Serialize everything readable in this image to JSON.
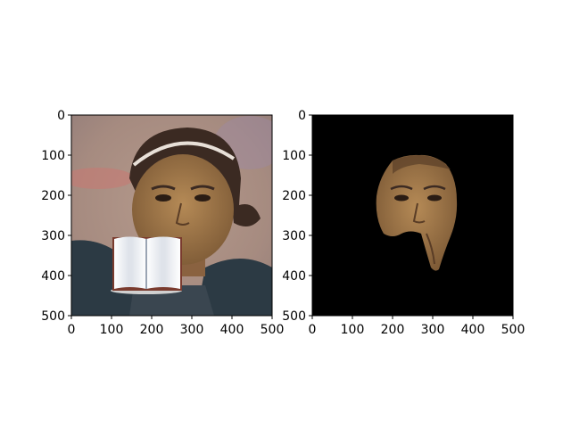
{
  "figure": {
    "panels": [
      {
        "name": "original-with-occluder",
        "x_ticks": [
          "0",
          "100",
          "200",
          "300",
          "400",
          "500"
        ],
        "y_ticks": [
          "0",
          "100",
          "200",
          "300",
          "400",
          "500"
        ],
        "content": "photo of a female soccer player's face with a white open-book occluder over the mouth region"
      },
      {
        "name": "segmented-face-mask",
        "x_ticks": [
          "0",
          "100",
          "200",
          "300",
          "400",
          "500"
        ],
        "y_ticks": [
          "0",
          "100",
          "200",
          "300",
          "400",
          "500"
        ],
        "content": "black background with only the visible face region kept"
      }
    ]
  },
  "colors": {
    "mask_background": "#000000",
    "book_page": "#f2f4f8",
    "book_cover": "#7a3b2e",
    "skin": "#9c7548",
    "jersey": "#2c3a44"
  }
}
